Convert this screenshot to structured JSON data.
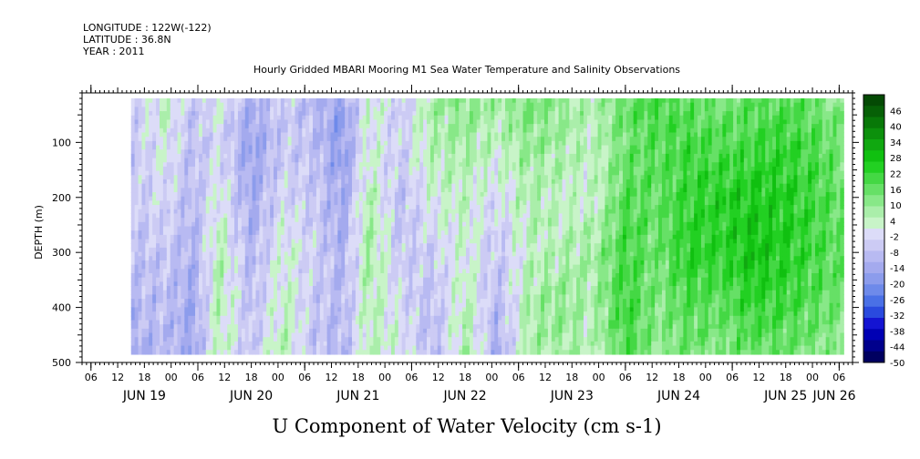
{
  "header": {
    "longitude": "LONGITUDE : 122W(-122)",
    "latitude": "LATITUDE : 36.8N",
    "year": "YEAR : 2011",
    "title": "Hourly Gridded MBARI Mooring M1 Sea Water Temperature and Salinity Observations"
  },
  "chart_data": {
    "type": "heatmap",
    "title": "U Component of Water Velocity (cm s-1)",
    "xlabel": "",
    "ylabel": "DEPTH (m)",
    "x_range": [
      "2011-06-18T22:00",
      "2011-06-26T03:00"
    ],
    "data_x_range": [
      "2011-06-19T09:00",
      "2011-06-26T01:00"
    ],
    "y_range": [
      10,
      500
    ],
    "data_depth_range": [
      20,
      485
    ],
    "y_inverted": true,
    "y_ticks": [
      100,
      200,
      300,
      400,
      500
    ],
    "y_tick_labels": [
      "100",
      "200",
      "300",
      "400",
      "500"
    ],
    "x_hour_ticks": [
      "06",
      "12",
      "18",
      "00",
      "06",
      "12",
      "18",
      "00",
      "06",
      "12",
      "18",
      "00",
      "06",
      "12",
      "18",
      "00",
      "06",
      "12",
      "18",
      "00",
      "06",
      "12",
      "18",
      "00",
      "06",
      "12",
      "18",
      "00",
      "06",
      "12",
      "18",
      "00"
    ],
    "x_date_labels": [
      {
        "text": "JUN 19",
        "date": "2011-06-19"
      },
      {
        "text": "JUN 20",
        "date": "2011-06-20"
      },
      {
        "text": "JUN 21",
        "date": "2011-06-21"
      },
      {
        "text": "JUN 22",
        "date": "2011-06-22"
      },
      {
        "text": "JUN 23",
        "date": "2011-06-23"
      },
      {
        "text": "JUN 24",
        "date": "2011-06-24"
      },
      {
        "text": "JUN 25",
        "date": "2011-06-25"
      },
      {
        "text": "JUN 26",
        "date": "2011-06-26"
      }
    ],
    "colorbar": {
      "labels": [
        "46",
        "40",
        "34",
        "28",
        "22",
        "16",
        "10",
        "4",
        "-2",
        "-8",
        "-14",
        "-20",
        "-26",
        "-32",
        "-38",
        "-44",
        "-50"
      ],
      "range": [
        -50,
        52
      ],
      "colors": [
        "#000060",
        "#00008c",
        "#0000b4",
        "#1414d2",
        "#2a4ade",
        "#4a70e6",
        "#6e8aea",
        "#8c9cec",
        "#a4aaee",
        "#b8baf2",
        "#cccbf4",
        "#dcdcf8",
        "#c8f4c8",
        "#aaeeaa",
        "#88e888",
        "#66e066",
        "#44d844",
        "#22d022",
        "#10c010",
        "#10a810",
        "#0c900c",
        "#087808",
        "#066006",
        "#044a04"
      ]
    },
    "u_velocity_profile": {
      "time_days_from_jun19_00": [
        0.4,
        0.7,
        0.95,
        1.2,
        1.5,
        1.8,
        2.1,
        2.35,
        2.6,
        2.9,
        3.2,
        3.5,
        3.8,
        4.1,
        4.4,
        4.7,
        5.0,
        5.3,
        5.6,
        5.9,
        6.2,
        6.5,
        6.8,
        7.0
      ],
      "depth_m": [
        20,
        100,
        200,
        300,
        400,
        485
      ],
      "values": [
        [
          -4,
          -6,
          -6,
          -8,
          -10,
          -12
        ],
        [
          4,
          2,
          -2,
          -6,
          -8,
          -10
        ],
        [
          -6,
          -8,
          -10,
          -12,
          -14,
          -14
        ],
        [
          0,
          -2,
          2,
          6,
          6,
          4
        ],
        [
          -12,
          -16,
          -14,
          -10,
          -8,
          -6
        ],
        [
          -4,
          -6,
          -2,
          2,
          4,
          6
        ],
        [
          -10,
          -8,
          -6,
          -4,
          -6,
          -8
        ],
        [
          -16,
          -18,
          -14,
          -12,
          -10,
          -10
        ],
        [
          4,
          2,
          6,
          8,
          6,
          4
        ],
        [
          -6,
          -4,
          -8,
          -6,
          -2,
          2
        ],
        [
          8,
          6,
          2,
          -4,
          -8,
          -10
        ],
        [
          12,
          8,
          4,
          2,
          6,
          8
        ],
        [
          8,
          4,
          -2,
          -6,
          -10,
          -12
        ],
        [
          14,
          10,
          6,
          4,
          8,
          6
        ],
        [
          10,
          8,
          4,
          6,
          10,
          8
        ],
        [
          6,
          4,
          2,
          8,
          6,
          4
        ],
        [
          16,
          14,
          18,
          20,
          22,
          18
        ],
        [
          20,
          18,
          16,
          14,
          12,
          10
        ],
        [
          16,
          20,
          22,
          24,
          18,
          14
        ],
        [
          14,
          18,
          24,
          22,
          16,
          12
        ],
        [
          16,
          20,
          26,
          28,
          22,
          16
        ],
        [
          18,
          22,
          24,
          24,
          20,
          14
        ],
        [
          14,
          18,
          20,
          20,
          16,
          12
        ],
        [
          10,
          14,
          16,
          16,
          14,
          10
        ]
      ]
    }
  }
}
